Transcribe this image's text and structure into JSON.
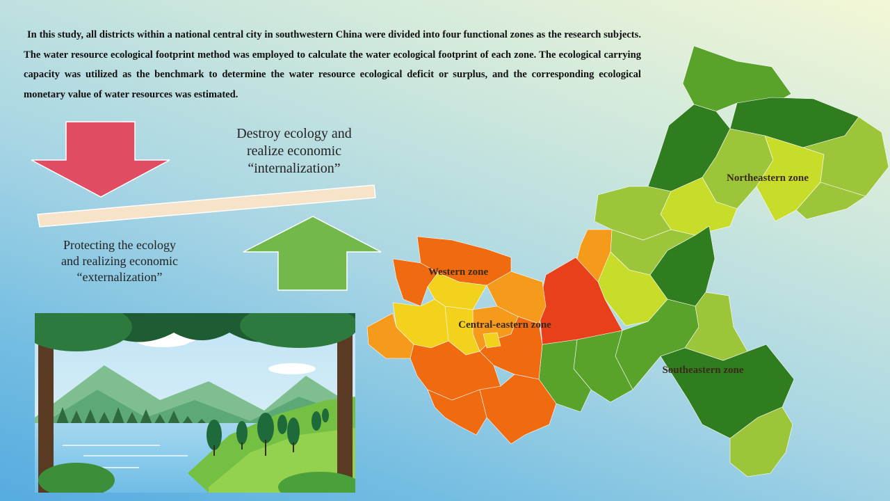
{
  "intro_text": "In this study, all districts within a national central city in southwestern China were divided into four functional zones as the research subjects. The water resource ecological footprint method was employed to calculate the water ecological footprint of each zone. The ecological carrying capacity was utilized as the benchmark to determine the water resource ecological deficit or surplus, and the corresponding ecological monetary value of water resources was estimated.",
  "balance": {
    "top_caption": {
      "line1": "Destroy ecology and",
      "line2": "realize economic",
      "line3": "“internalization”"
    },
    "bottom_caption": {
      "line1": "Protecting the ecology",
      "line2": "and realizing economic",
      "line3": "“externalization”"
    },
    "down_arrow_color": "#e04d63",
    "up_arrow_color": "#72b84a"
  },
  "map": {
    "zones": {
      "northeastern": "Northeastern zone",
      "western": "Western zone",
      "central_eastern": "Central-eastern zone",
      "southeastern": "Southeastern zone"
    },
    "colors": {
      "dark_green": "#2f7d1f",
      "green": "#5aa32a",
      "light_green": "#9dc53a",
      "yellow_green": "#c8dc2a",
      "yellow": "#f2d21c",
      "orange": "#f59a1a",
      "dark_orange": "#f06a10",
      "red_orange": "#e8401a"
    }
  },
  "illustration": {
    "icon": "forest-lake-illustration"
  }
}
